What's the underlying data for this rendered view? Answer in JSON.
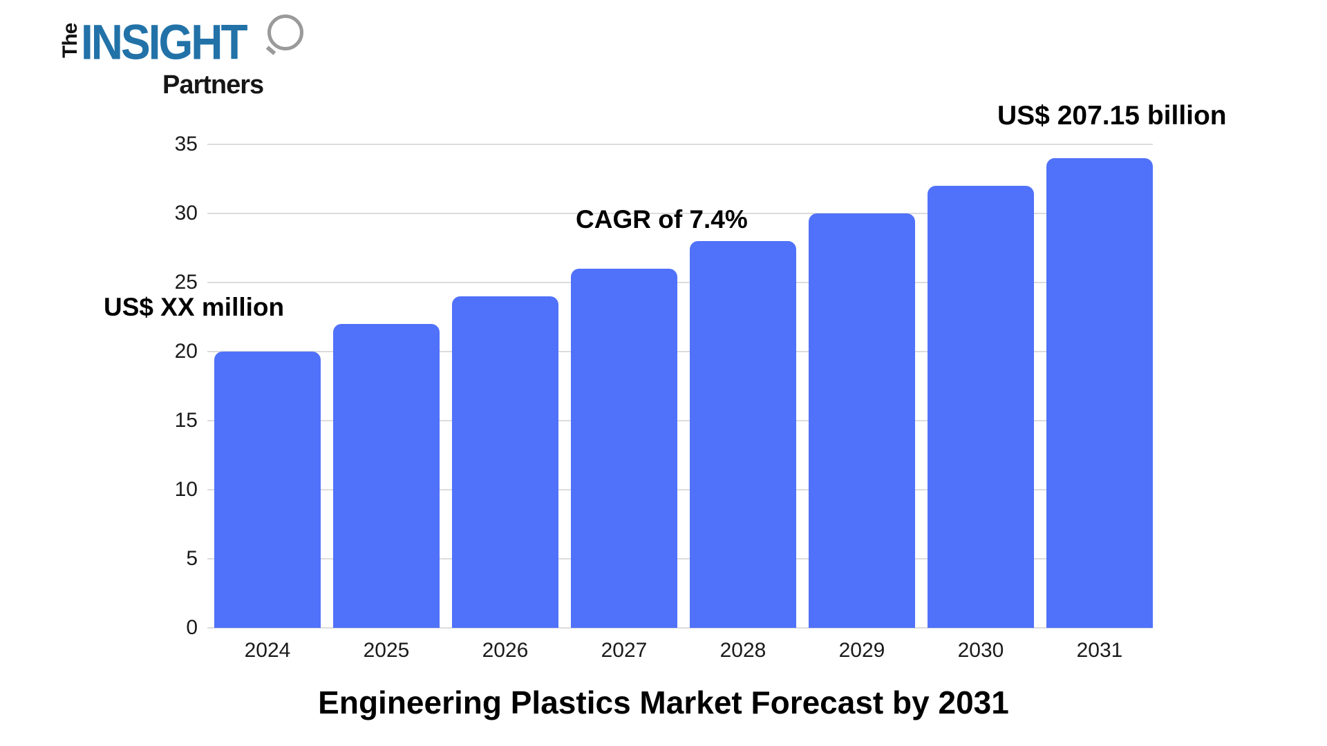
{
  "logo": {
    "the": "The",
    "insight": "INSIGHT",
    "partners": "Partners",
    "brand_blue": "#2272A8"
  },
  "annotations": {
    "start_value": "US$ XX million",
    "cagr": "CAGR of 7.4%",
    "end_value": "US$ 207.15 billion"
  },
  "title": "Engineering Plastics Market Forecast by 2031",
  "chart_data": {
    "type": "bar",
    "categories": [
      "2024",
      "2025",
      "2026",
      "2027",
      "2028",
      "2029",
      "2030",
      "2031"
    ],
    "values": [
      20,
      22,
      24,
      26,
      28,
      30,
      32,
      34
    ],
    "title": "Engineering Plastics Market Forecast by 2031",
    "xlabel": "",
    "ylabel": "",
    "ylim": [
      0,
      35
    ],
    "yticks": [
      0,
      5,
      10,
      15,
      20,
      25,
      30,
      35
    ],
    "grid": "horizontal",
    "legend_position": "none",
    "bar_color": "#5071F9",
    "gridline_color": "#DCDCDC",
    "annotations": [
      {
        "text": "US$ XX million",
        "near": "2024 bar"
      },
      {
        "text": "CAGR of 7.4%",
        "near": "2028 bar"
      },
      {
        "text": "US$ 207.15 billion",
        "near": "2031 bar"
      }
    ]
  }
}
